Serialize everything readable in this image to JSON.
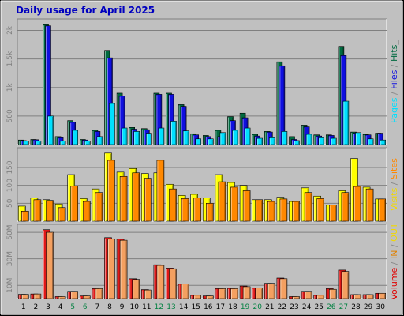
{
  "chart_data": [
    {
      "type": "bar",
      "title": "Daily usage for April 2025",
      "ylabel_parts": [
        "Pages",
        " / ",
        "Files",
        " / ",
        "Hits",
        "_"
      ],
      "ylabel_colors": [
        "#00e0ff",
        "#888888",
        "#1010e0",
        "#888888",
        "#006a40",
        "#888888"
      ],
      "yticks": [
        "500",
        "1k",
        "1.5k",
        "2k"
      ],
      "ytick_values": [
        500,
        1000,
        1500,
        2000
      ],
      "ylim": [
        0,
        2200
      ],
      "series": [
        {
          "name": "Hits",
          "color": "#006a40",
          "values": [
            80,
            90,
            2100,
            140,
            420,
            90,
            250,
            1650,
            900,
            300,
            280,
            900,
            900,
            700,
            190,
            160,
            250,
            490,
            550,
            180,
            230,
            1450,
            140,
            340,
            170,
            170,
            1720,
            220,
            180,
            200
          ]
        },
        {
          "name": "Files",
          "color": "#1010e0",
          "values": [
            70,
            85,
            2080,
            120,
            390,
            80,
            230,
            1520,
            850,
            270,
            260,
            880,
            880,
            670,
            170,
            140,
            140,
            420,
            470,
            150,
            220,
            1380,
            90,
            310,
            150,
            160,
            1560,
            200,
            170,
            200
          ]
        },
        {
          "name": "Pages",
          "color": "#00e0ff",
          "values": [
            60,
            60,
            500,
            60,
            250,
            60,
            140,
            720,
            290,
            230,
            200,
            290,
            410,
            240,
            100,
            100,
            210,
            250,
            290,
            110,
            120,
            230,
            70,
            180,
            120,
            110,
            760,
            210,
            100,
            80
          ]
        }
      ]
    },
    {
      "type": "bar",
      "ylabel_parts": [
        "Visits",
        " / ",
        "Sites"
      ],
      "ylabel_colors": [
        "#f2d800",
        "#888888",
        "#ff8800"
      ],
      "yticks": [
        "50",
        "100",
        "150"
      ],
      "ytick_values": [
        50,
        100,
        150
      ],
      "ylim": [
        0,
        205
      ],
      "series": [
        {
          "name": "Visits",
          "color": "#ffff00",
          "values": [
            42,
            65,
            60,
            48,
            130,
            63,
            90,
            190,
            137,
            147,
            133,
            135,
            103,
            72,
            75,
            65,
            130,
            108,
            100,
            60,
            60,
            67,
            55,
            93,
            70,
            45,
            85,
            175,
            95,
            62
          ]
        },
        {
          "name": "Sites",
          "color": "#ff8800",
          "values": [
            28,
            60,
            58,
            38,
            98,
            55,
            80,
            170,
            125,
            135,
            120,
            170,
            90,
            63,
            65,
            50,
            110,
            95,
            85,
            60,
            55,
            62,
            55,
            80,
            63,
            45,
            80,
            97,
            90,
            62
          ]
        }
      ]
    },
    {
      "type": "bar",
      "ylabel_parts": [
        "Volume",
        " / ",
        "IN",
        " / ",
        "OUT"
      ],
      "ylabel_colors": [
        "#e00000",
        "#888888",
        "#e08000",
        "#888888",
        "#f2d800"
      ],
      "yticks": [
        "10M",
        "30M",
        "50M"
      ],
      "ytick_values": [
        10,
        30,
        50
      ],
      "ylim": [
        0,
        56
      ],
      "series": [
        {
          "name": "Volume",
          "color": "#e01818",
          "values": [
            3.2,
            3.5,
            52.0,
            1.5,
            5.5,
            2.0,
            7.5,
            46.0,
            45.0,
            15.0,
            6.8,
            25.5,
            23.0,
            11.0,
            2.5,
            2.0,
            7.5,
            7.8,
            9.5,
            8.0,
            11.5,
            15.5,
            1.5,
            5.5,
            2.5,
            7.5,
            21.5,
            3.0,
            3.0,
            4.0
          ]
        },
        {
          "name": "OUT",
          "color": "#f4a060",
          "values": [
            3.2,
            3.5,
            50.0,
            1.5,
            5.5,
            2.0,
            7.5,
            45.0,
            44.0,
            14.5,
            6.5,
            25.0,
            22.5,
            11.0,
            2.5,
            2.0,
            7.5,
            7.5,
            9.0,
            8.0,
            11.5,
            15.0,
            1.5,
            5.5,
            2.5,
            7.0,
            20.5,
            3.0,
            3.0,
            4.0
          ]
        }
      ]
    }
  ],
  "days": [
    "1",
    "2",
    "3",
    "4",
    "5",
    "6",
    "7",
    "8",
    "9",
    "10",
    "11",
    "12",
    "13",
    "14",
    "15",
    "16",
    "17",
    "18",
    "19",
    "20",
    "21",
    "22",
    "23",
    "24",
    "25",
    "26",
    "27",
    "28",
    "29",
    "30"
  ],
  "weekend_days": [
    "5",
    "6",
    "12",
    "13",
    "19",
    "20",
    "26",
    "27"
  ],
  "colors": {
    "background": "#c0c0c0",
    "title": "#0000c0",
    "weekday_label": "#000000",
    "weekend_label": "#008040"
  }
}
